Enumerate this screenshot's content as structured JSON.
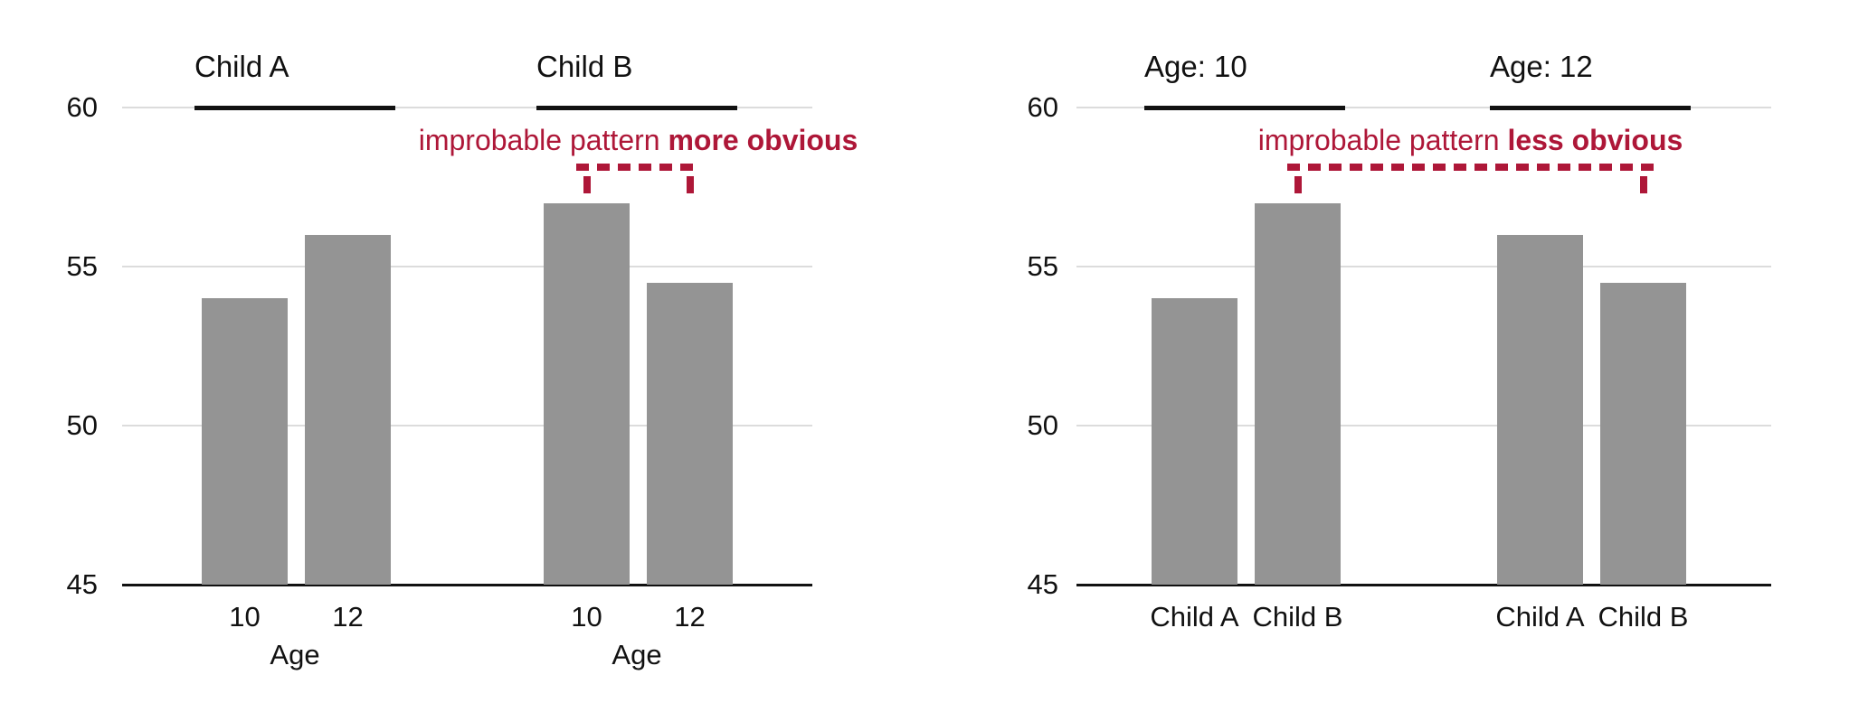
{
  "figure": {
    "description": "Two grouped bar charts: same data grouped by child (left) and by age (right)",
    "colors": {
      "bar": "#949494",
      "annotation_red": "#ae1738",
      "gridline": "#dcdcdc",
      "axis": "#111111",
      "text": "#111111"
    }
  },
  "chart_data": [
    {
      "type": "bar",
      "group_by": "child",
      "ylim": [
        45,
        60
      ],
      "y_ticks": [
        45,
        50,
        55,
        60
      ],
      "grid": "horizontal",
      "legend": "none",
      "facets": [
        {
          "title": "Child A",
          "xlabel": "Age",
          "categories": [
            "10",
            "12"
          ],
          "values": [
            54,
            56
          ]
        },
        {
          "title": "Child B",
          "xlabel": "Age",
          "categories": [
            "10",
            "12"
          ],
          "values": [
            57,
            54.5
          ]
        }
      ],
      "annotation": {
        "regular_text": "improbable pattern ",
        "bold_text": "more obvious",
        "bracket": {
          "from": {
            "facet": 1,
            "bar": 0
          },
          "to": {
            "facet": 1,
            "bar": 1
          }
        }
      }
    },
    {
      "type": "bar",
      "group_by": "age",
      "ylim": [
        45,
        60
      ],
      "y_ticks": [
        45,
        50,
        55,
        60
      ],
      "grid": "horizontal",
      "legend": "none",
      "facets": [
        {
          "title": "Age: 10",
          "xlabel": "",
          "categories": [
            "Child A",
            "Child B"
          ],
          "values": [
            54,
            57
          ]
        },
        {
          "title": "Age: 12",
          "xlabel": "",
          "categories": [
            "Child A",
            "Child B"
          ],
          "values": [
            56,
            54.5
          ]
        }
      ],
      "annotation": {
        "regular_text": "improbable pattern ",
        "bold_text": "less obvious",
        "bracket": {
          "from": {
            "facet": 0,
            "bar": 1
          },
          "to": {
            "facet": 1,
            "bar": 1
          }
        }
      }
    }
  ]
}
